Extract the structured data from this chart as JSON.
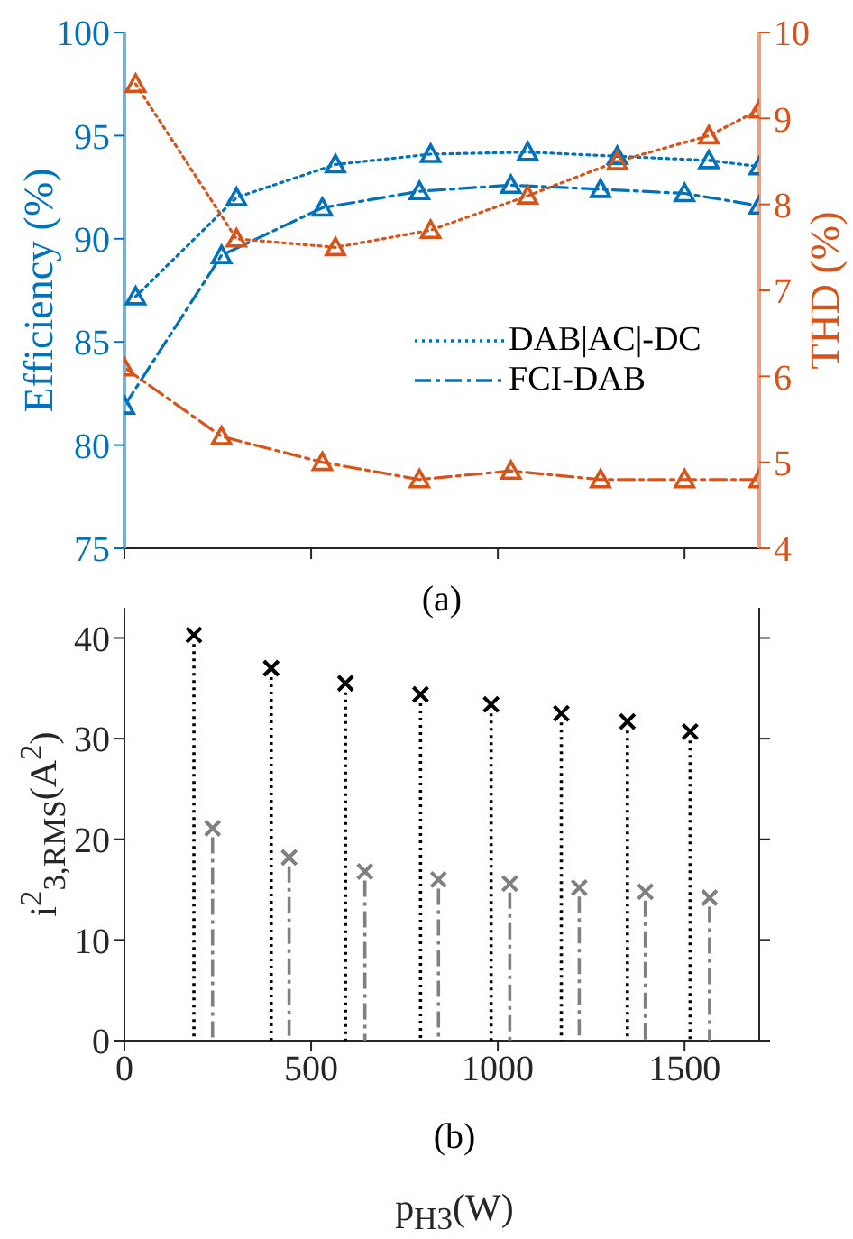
{
  "chart_data": [
    {
      "type": "line",
      "annotations": [
        "(a)"
      ],
      "ylabel": "Efficiency (%)",
      "y2label": "THD (%)",
      "xlim": [
        0,
        1700
      ],
      "xticks": [
        0,
        500,
        1000,
        1500
      ],
      "ylim": [
        75,
        100
      ],
      "yticks": [
        75,
        80,
        85,
        90,
        95,
        100
      ],
      "y2lim": [
        4,
        10
      ],
      "y2ticks": [
        4,
        5,
        6,
        7,
        8,
        9,
        10
      ],
      "tick_labels": "y",
      "marker": "triangle",
      "legend": "right",
      "grid": false,
      "series": [
        {
          "name": "DAB|AC|-DC",
          "color": "#0072bd",
          "line_style": "dotted",
          "x": [
            30,
            300,
            565,
            820,
            1080,
            1320,
            1565,
            1700
          ],
          "values": [
            87.2,
            92.0,
            93.6,
            94.1,
            94.2,
            94.0,
            93.8,
            93.5
          ]
        },
        {
          "name": "FCI-DAB",
          "color": "#0072bd",
          "line_style": "dashed",
          "x": [
            0,
            260,
            530,
            790,
            1035,
            1275,
            1500,
            1700
          ],
          "values": [
            81.9,
            89.2,
            91.5,
            92.3,
            92.6,
            92.4,
            92.2,
            91.6
          ]
        },
        {
          "color": "#d95319",
          "line_style": "dotted",
          "axis": "y2",
          "x": [
            30,
            300,
            565,
            820,
            1080,
            1320,
            1565,
            1700
          ],
          "values": [
            9.4,
            7.6,
            7.5,
            7.7,
            8.1,
            8.5,
            8.8,
            9.1
          ]
        },
        {
          "color": "#d95319",
          "line_style": "dashed",
          "axis": "y2",
          "x": [
            0,
            260,
            530,
            790,
            1035,
            1275,
            1500,
            1700
          ],
          "values": [
            6.1,
            5.3,
            5.0,
            4.8,
            4.9,
            4.8,
            4.8,
            4.8
          ]
        }
      ]
    },
    {
      "type": "lollipop",
      "annotations": [
        "(b)"
      ],
      "xlabel": "p$_{H3}$(W)",
      "ylabel": "i$^{2}$$_{3,RMS}$(A$^{2}$)",
      "xlim": [
        0,
        1700
      ],
      "xticks": [
        0,
        500,
        1000,
        1500
      ],
      "ylim": [
        0,
        43
      ],
      "yticks": [
        0,
        10,
        20,
        30,
        40
      ],
      "marker": "cross",
      "grid": false,
      "series": [
        {
          "color": "#000000",
          "line_style": "dotted",
          "x": [
            186,
            393,
            592,
            793,
            982,
            1170,
            1347,
            1515
          ],
          "values": [
            40.3,
            37.0,
            35.5,
            34.4,
            33.4,
            32.5,
            31.7,
            30.7
          ]
        },
        {
          "color": "#808080",
          "line_style": "dashed",
          "x": [
            236,
            441,
            644,
            841,
            1032,
            1218,
            1395,
            1567
          ],
          "values": [
            21.1,
            18.2,
            16.8,
            16.0,
            15.6,
            15.2,
            14.8,
            14.2
          ]
        }
      ]
    }
  ]
}
